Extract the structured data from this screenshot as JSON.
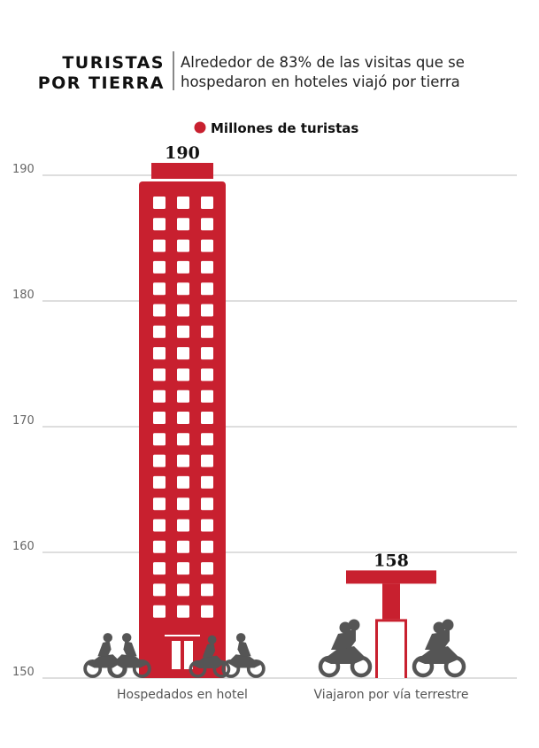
{
  "header": {
    "kicker_line1": "TURISTAS",
    "kicker_line2": "POR TIERRA",
    "dek_line1": "Alrededor de 83% de las visitas que se",
    "dek_line2": "hospedaron en hoteles viajó por tierra"
  },
  "colors": {
    "accent": "#c8202f",
    "grid": "#bdbdbd",
    "axis_text": "#666666",
    "title_text": "#111111",
    "silhouette": "#555555"
  },
  "icons": {
    "building": "hotel-building-icon",
    "station": "gas-station-icon",
    "motorcycle": "motorcycle-icon"
  },
  "chart_data": {
    "type": "bar",
    "title": "",
    "xlabel": "",
    "ylabel": "",
    "ylim": [
      150,
      190
    ],
    "yticks": [
      150,
      160,
      170,
      180,
      190
    ],
    "grid": true,
    "legend_position": "top-center",
    "categories": [
      "Hospedados en hotel",
      "Viajaron por vía terrestre"
    ],
    "series": [
      {
        "name": "Millones de turistas",
        "values": [
          190,
          158
        ]
      }
    ],
    "data_labels": [
      "190",
      "158"
    ]
  }
}
